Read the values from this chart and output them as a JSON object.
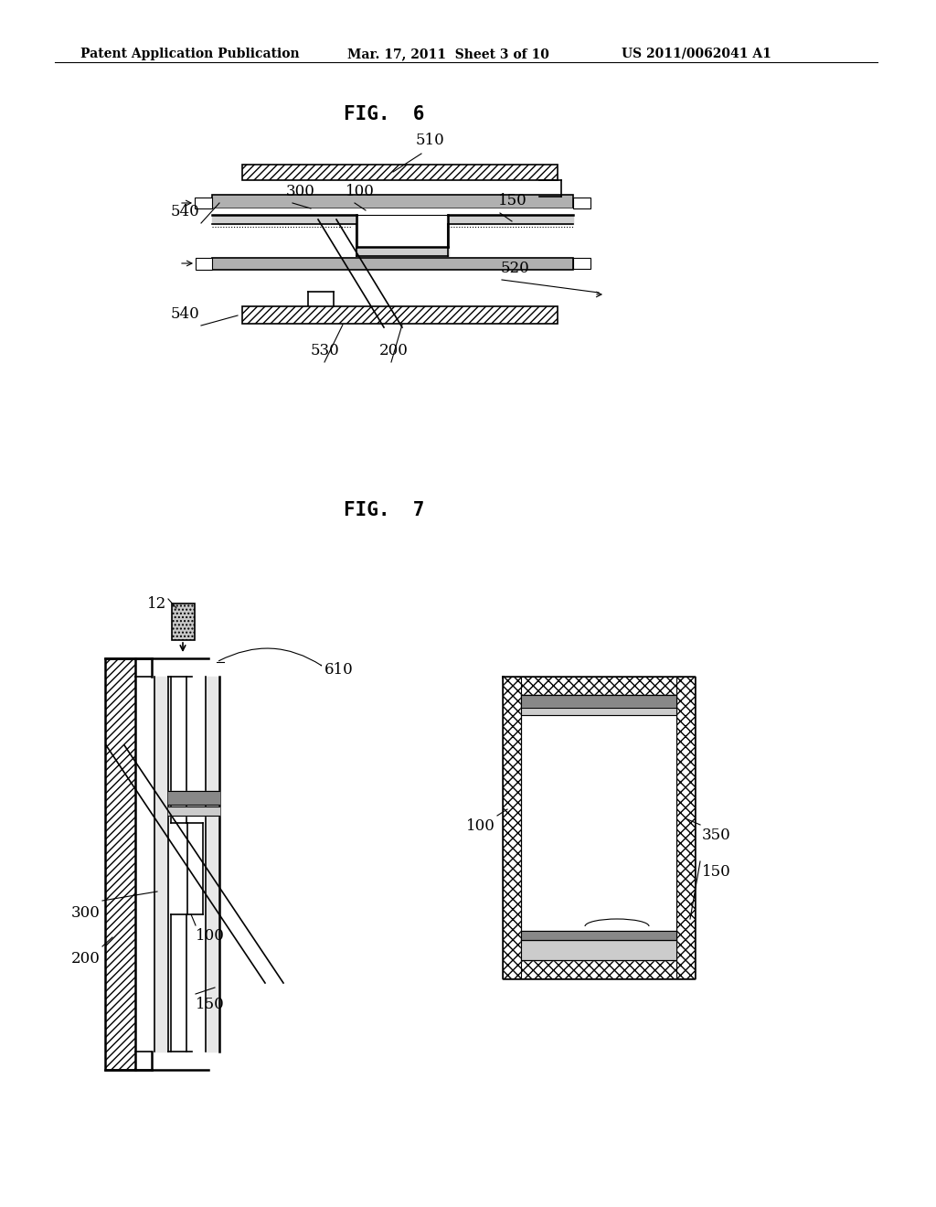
{
  "bg_color": "#ffffff",
  "fig6_title": "FIG.  6",
  "fig7_title": "FIG.  7",
  "header_left": "Patent Application Publication",
  "header_mid": "Mar. 17, 2011  Sheet 3 of 10",
  "header_right": "US 2011/0062041 A1"
}
